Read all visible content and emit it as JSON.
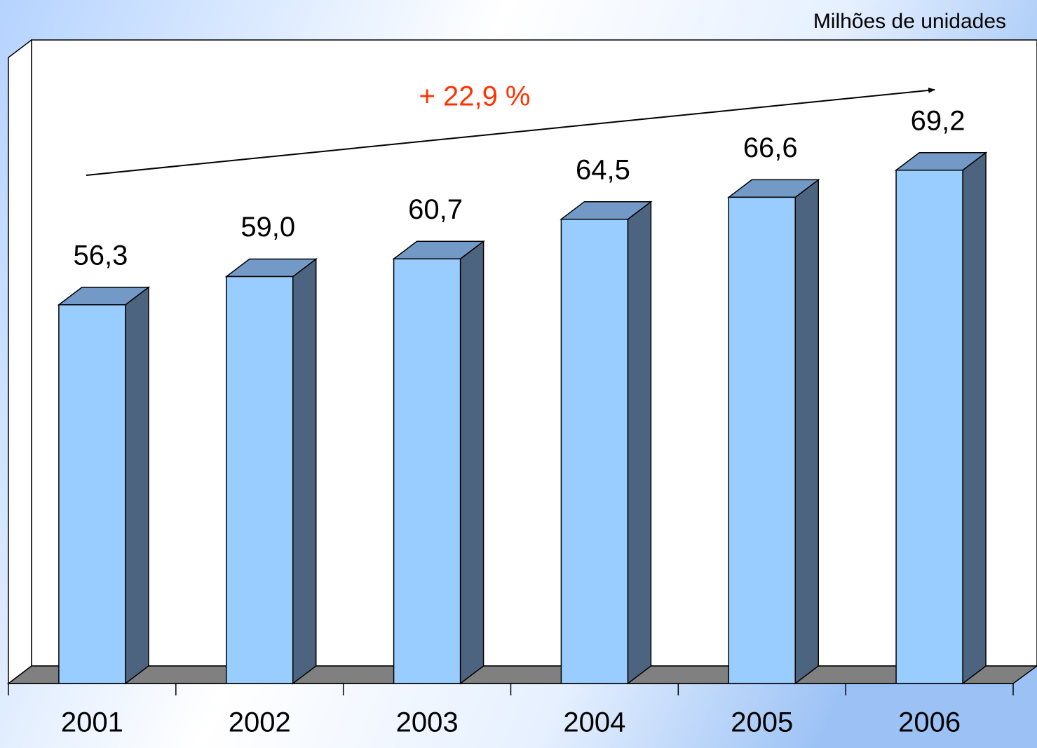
{
  "chart_data": {
    "type": "bar3d",
    "unit": "Milhões de unidades",
    "annotation": "+ 22,9 %",
    "categories": [
      "2001",
      "2002",
      "2003",
      "2004",
      "2005",
      "2006"
    ],
    "values": [
      56.3,
      59.0,
      60.7,
      64.5,
      66.6,
      69.2
    ],
    "value_labels": [
      "56,3",
      "59,0",
      "60,7",
      "64,5",
      "66,6",
      "69,2"
    ],
    "color": "#99ccff",
    "ylim": [
      20,
      80
    ]
  }
}
